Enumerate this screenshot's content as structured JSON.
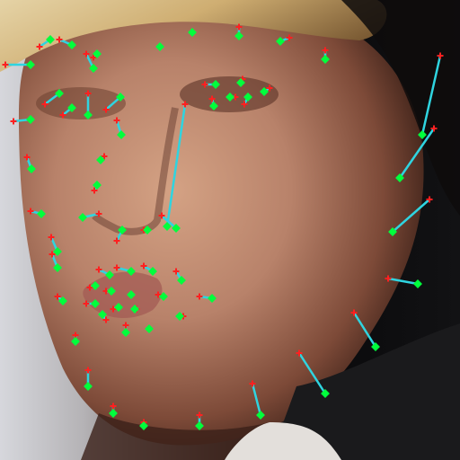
{
  "image": {
    "subject": "face-photo-with-landmark-overlay",
    "palette": {
      "background_left": "#d6d7dc",
      "background_right": "#0b0b0d",
      "hair": "#cfae72",
      "skin": "#b8826a",
      "skin_shadow": "#6a3c2c",
      "lips": "#a35b54",
      "suit": "#1a1a1c",
      "collar": "#e3dfdb"
    }
  },
  "overlay": {
    "colors": {
      "predicted_point": "#00ff3c",
      "ground_truth_point": "#ff2020",
      "error_vector": "#2fd4e0"
    },
    "landmark_groups": [
      "jawline",
      "eyebrows",
      "nose",
      "eyes",
      "mouth"
    ]
  }
}
